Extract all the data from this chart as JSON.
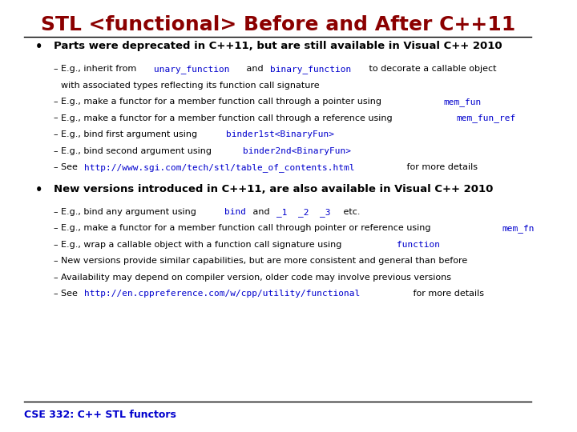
{
  "title": "STL <functional> Before and After C++11",
  "title_color": "#8B0000",
  "background_color": "#FFFFFF",
  "footer_text": "CSE 332: C++ STL functors",
  "footer_color": "#0000CD",
  "text_color": "#000000",
  "code_color": "#0000CD",
  "bullet1_header": "Parts were deprecated in C++11, but are still available in Visual C++ 2010",
  "bullet1_items": [
    {
      "text_parts": [
        {
          "text": "E.g., inherit from ",
          "code": false
        },
        {
          "text": "unary_function",
          "code": true
        },
        {
          "text": " and ",
          "code": false
        },
        {
          "text": "binary_function",
          "code": true
        },
        {
          "text": " to decorate a callable object",
          "code": false
        }
      ],
      "continuation": "with associated types reflecting its function call signature"
    },
    {
      "text_parts": [
        {
          "text": "E.g., make a functor for a member function call through a pointer using ",
          "code": false
        },
        {
          "text": "mem_fun",
          "code": true
        }
      ]
    },
    {
      "text_parts": [
        {
          "text": "E.g., make a functor for a member function call through a reference using ",
          "code": false
        },
        {
          "text": "mem_fun_ref",
          "code": true
        }
      ]
    },
    {
      "text_parts": [
        {
          "text": "E.g., bind first argument using ",
          "code": false
        },
        {
          "text": "binder1st<BinaryFun>",
          "code": true
        }
      ]
    },
    {
      "text_parts": [
        {
          "text": "E.g., bind second argument using ",
          "code": false
        },
        {
          "text": "binder2nd<BinaryFun>",
          "code": true
        }
      ]
    },
    {
      "text_parts": [
        {
          "text": "See ",
          "code": false
        },
        {
          "text": "http://www.sgi.com/tech/stl/table_of_contents.html",
          "code": true
        },
        {
          "text": " for more details",
          "code": false
        }
      ]
    }
  ],
  "bullet2_header": "New versions introduced in C++11, are also available in Visual C++ 2010",
  "bullet2_items": [
    {
      "text_parts": [
        {
          "text": "E.g., bind any argument using ",
          "code": false
        },
        {
          "text": "bind",
          "code": true
        },
        {
          "text": " and ",
          "code": false
        },
        {
          "text": "_1  _2  _3",
          "code": true
        },
        {
          "text": " etc.",
          "code": false
        }
      ]
    },
    {
      "text_parts": [
        {
          "text": "E.g., make a functor for a member function call through pointer or reference using ",
          "code": false
        },
        {
          "text": "mem_fn",
          "code": true
        }
      ]
    },
    {
      "text_parts": [
        {
          "text": "E.g., wrap a callable object with a function call signature using ",
          "code": false
        },
        {
          "text": "function",
          "code": true
        }
      ]
    },
    {
      "text_parts": [
        {
          "text": "New versions provide similar capabilities, but are more consistent and general than before",
          "code": false
        }
      ]
    },
    {
      "text_parts": [
        {
          "text": "Availability may depend on compiler version, older code may involve previous versions",
          "code": false
        }
      ]
    },
    {
      "text_parts": [
        {
          "text": "See ",
          "code": false
        },
        {
          "text": "http://en.cppreference.com/w/cpp/utility/functional",
          "code": true
        },
        {
          "text": " for more details",
          "code": false
        }
      ]
    }
  ]
}
